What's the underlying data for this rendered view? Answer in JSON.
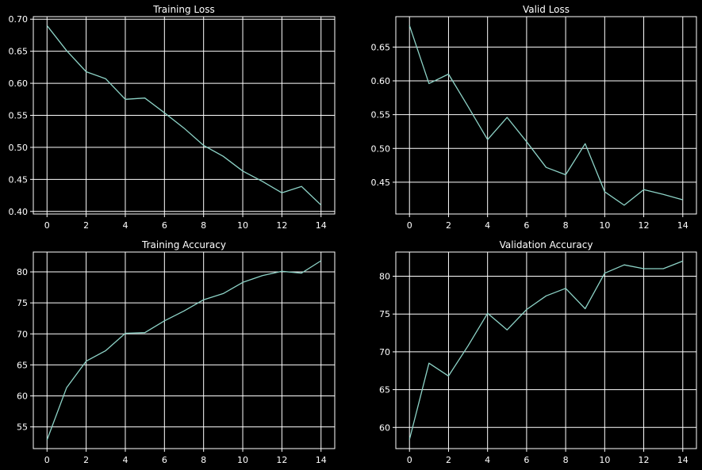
{
  "colors": {
    "background": "#000000",
    "foreground": "#ffffff",
    "line": "#8dd3c7"
  },
  "chart_data": [
    {
      "type": "line",
      "title": "Training Loss",
      "xlabel": "",
      "ylabel": "",
      "x": [
        0,
        1,
        2,
        3,
        4,
        5,
        6,
        7,
        8,
        9,
        10,
        11,
        12,
        13,
        14
      ],
      "series": [
        {
          "values": [
            0.69,
            0.651,
            0.618,
            0.607,
            0.575,
            0.577,
            0.554,
            0.53,
            0.503,
            0.486,
            0.463,
            0.447,
            0.429,
            0.439,
            0.41
          ]
        }
      ],
      "xlim": [
        -0.7,
        14.7
      ],
      "ylim": [
        0.396,
        0.704
      ],
      "xticks": [
        0,
        2,
        4,
        6,
        8,
        10,
        12,
        14
      ],
      "yticks": [
        0.4,
        0.45,
        0.5,
        0.55,
        0.6,
        0.65,
        0.7
      ],
      "yticklabels": [
        "0.40",
        "0.45",
        "0.50",
        "0.55",
        "0.60",
        "0.65",
        "0.70"
      ],
      "grid": true
    },
    {
      "type": "line",
      "title": "Valid Loss",
      "xlabel": "",
      "ylabel": "",
      "x": [
        0,
        1,
        2,
        3,
        4,
        5,
        6,
        7,
        8,
        9,
        10,
        11,
        12,
        13,
        14
      ],
      "series": [
        {
          "values": [
            0.682,
            0.596,
            0.61,
            0.562,
            0.513,
            0.546,
            0.51,
            0.472,
            0.461,
            0.507,
            0.436,
            0.416,
            0.439,
            0.432,
            0.424
          ]
        }
      ],
      "xlim": [
        -0.7,
        14.7
      ],
      "ylim": [
        0.403,
        0.695
      ],
      "xticks": [
        0,
        2,
        4,
        6,
        8,
        10,
        12,
        14
      ],
      "yticks": [
        0.45,
        0.5,
        0.55,
        0.6,
        0.65
      ],
      "yticklabels": [
        "0.45",
        "0.50",
        "0.55",
        "0.60",
        "0.65"
      ],
      "grid": true
    },
    {
      "type": "line",
      "title": "Training Accuracy",
      "xlabel": "",
      "ylabel": "",
      "x": [
        0,
        1,
        2,
        3,
        4,
        5,
        6,
        7,
        8,
        9,
        10,
        11,
        12,
        13,
        14
      ],
      "series": [
        {
          "values": [
            52.9,
            61.3,
            65.6,
            67.3,
            70.1,
            70.2,
            72.1,
            73.7,
            75.5,
            76.5,
            78.3,
            79.4,
            80.1,
            79.8,
            81.8
          ]
        }
      ],
      "xlim": [
        -0.7,
        14.7
      ],
      "ylim": [
        51.5,
        83.2
      ],
      "xticks": [
        0,
        2,
        4,
        6,
        8,
        10,
        12,
        14
      ],
      "yticks": [
        55,
        60,
        65,
        70,
        75,
        80
      ],
      "yticklabels": [
        "55",
        "60",
        "65",
        "70",
        "75",
        "80"
      ],
      "grid": true
    },
    {
      "type": "line",
      "title": "Validation Accuracy",
      "xlabel": "",
      "ylabel": "",
      "x": [
        0,
        1,
        2,
        3,
        4,
        5,
        6,
        7,
        8,
        9,
        10,
        11,
        12,
        13,
        14
      ],
      "series": [
        {
          "values": [
            58.4,
            68.5,
            66.8,
            70.8,
            75.1,
            72.9,
            75.6,
            77.4,
            78.4,
            75.7,
            80.4,
            81.5,
            81.0,
            81.0,
            82.0
          ]
        }
      ],
      "xlim": [
        -0.7,
        14.7
      ],
      "ylim": [
        57.2,
        83.2
      ],
      "xticks": [
        0,
        2,
        4,
        6,
        8,
        10,
        12,
        14
      ],
      "yticks": [
        60,
        65,
        70,
        75,
        80
      ],
      "yticklabels": [
        "60",
        "65",
        "70",
        "75",
        "80"
      ],
      "grid": true
    }
  ]
}
